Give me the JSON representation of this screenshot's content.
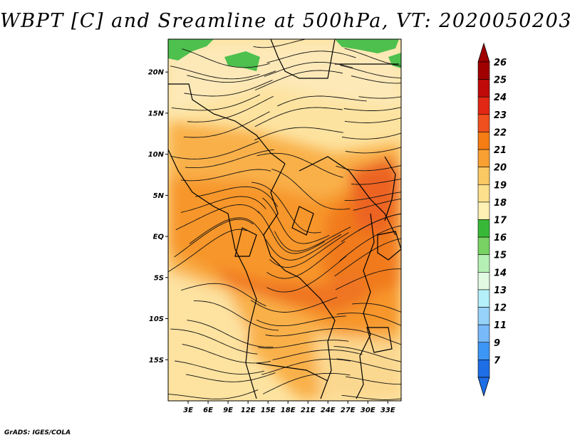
{
  "title": "WBPT [C] and Sreamline at 500hPa, VT: 2020050203",
  "footer": "GrADS: IGES/COLA",
  "map": {
    "lon_range": [
      0,
      35
    ],
    "lat_range": [
      -20,
      24
    ],
    "lat_ticks": [
      {
        "value": 20,
        "label": "20N"
      },
      {
        "value": 15,
        "label": "15N"
      },
      {
        "value": 10,
        "label": "10N"
      },
      {
        "value": 5,
        "label": "5N"
      },
      {
        "value": 0,
        "label": "EQ"
      },
      {
        "value": -5,
        "label": "5S"
      },
      {
        "value": -10,
        "label": "10S"
      },
      {
        "value": -15,
        "label": "15S"
      }
    ],
    "lon_ticks": [
      {
        "value": 3,
        "label": "3E"
      },
      {
        "value": 6,
        "label": "6E"
      },
      {
        "value": 9,
        "label": "9E"
      },
      {
        "value": 12,
        "label": "12E"
      },
      {
        "value": 15,
        "label": "15E"
      },
      {
        "value": 18,
        "label": "18E"
      },
      {
        "value": 21,
        "label": "21E"
      },
      {
        "value": 24,
        "label": "24E"
      },
      {
        "value": 27,
        "label": "27E"
      },
      {
        "value": 30,
        "label": "30E"
      },
      {
        "value": 33,
        "label": "33E"
      }
    ]
  },
  "colorbar": {
    "levels": [
      {
        "label": "26",
        "color": "#a00000"
      },
      {
        "label": "25",
        "color": "#c00a0a"
      },
      {
        "label": "24",
        "color": "#e12814"
      },
      {
        "label": "23",
        "color": "#f0501e"
      },
      {
        "label": "22",
        "color": "#f57d14"
      },
      {
        "label": "21",
        "color": "#f9a032"
      },
      {
        "label": "20",
        "color": "#fac864"
      },
      {
        "label": "19",
        "color": "#fde08c"
      },
      {
        "label": "18",
        "color": "#fff0b4"
      },
      {
        "label": "17",
        "color": "#37b937"
      },
      {
        "label": "16",
        "color": "#78d264"
      },
      {
        "label": "15",
        "color": "#b4f0b4"
      },
      {
        "label": "14",
        "color": "#e1fae1"
      },
      {
        "label": "13",
        "color": "#b4f0fa"
      },
      {
        "label": "12",
        "color": "#96d2fa"
      },
      {
        "label": "11",
        "color": "#78b9fa"
      },
      {
        "label": "9",
        "color": "#3c96f5"
      },
      {
        "label": "7",
        "color": "#1e6ee6"
      }
    ],
    "top_arrow_color": "#a00000",
    "bottom_arrow_color": "#1e6ee6"
  }
}
